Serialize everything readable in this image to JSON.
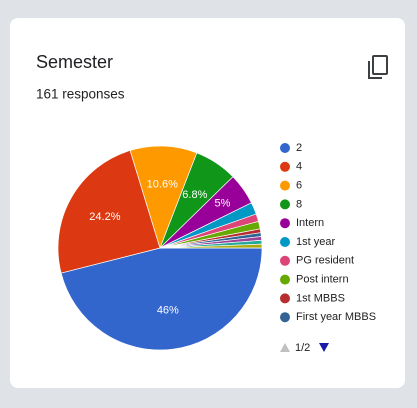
{
  "chart_data": {
    "type": "pie",
    "title": "Semester",
    "subtitle": "161 responses",
    "categories": [
      "2",
      "4",
      "6",
      "8",
      "Intern",
      "1st year",
      "PG resident",
      "Post intern",
      "1st MBBS",
      "First year MBBS",
      null,
      null,
      null
    ],
    "values": [
      46,
      24.2,
      10.6,
      6.8,
      5,
      1.9,
      1.2,
      1.2,
      0.6,
      0.6,
      0.6,
      0.6,
      0.6
    ],
    "value_labels": [
      "46%",
      "24.2%",
      "10.6%",
      "6.8%",
      "5%",
      null,
      null,
      null,
      null,
      null,
      null,
      null,
      null
    ],
    "colors": [
      "#3366cc",
      "#dc3912",
      "#ff9900",
      "#109618",
      "#990099",
      "#0099c6",
      "#dd4477",
      "#66aa00",
      "#b82e2e",
      "#316395",
      "#994499",
      "#22aa99",
      "#aaaa11"
    ],
    "legend_position": "right",
    "legend_page": "1/2"
  }
}
